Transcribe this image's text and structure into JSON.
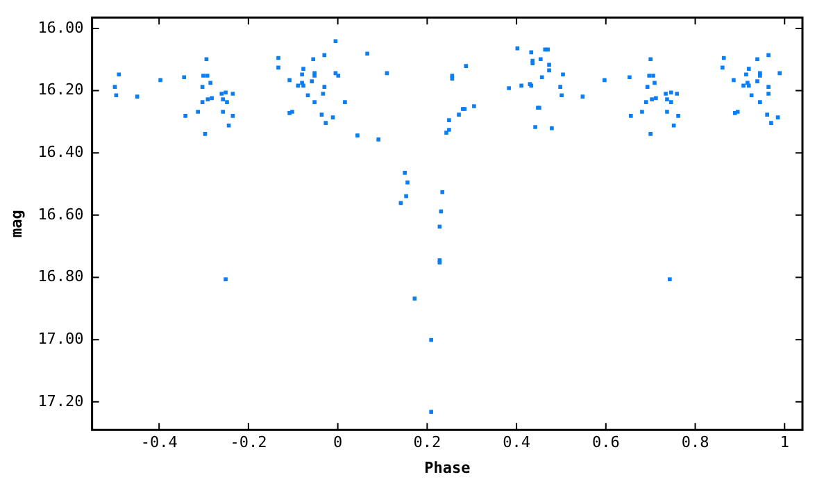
{
  "chart_data": {
    "type": "scatter",
    "xlabel": "Phase",
    "ylabel": "mag",
    "marker": "square",
    "grid": false,
    "xlim": [
      -0.55,
      1.04
    ],
    "xticks": [
      -0.4,
      -0.2,
      0,
      0.2,
      0.4,
      0.6,
      0.8,
      1
    ],
    "ylim": [
      17.29,
      15.965
    ],
    "yticks": [
      {
        "value": 16,
        "label": "16.00"
      },
      {
        "value": 16.2,
        "label": "16.20"
      },
      {
        "value": 16.4,
        "label": "16.40"
      },
      {
        "value": 16.6,
        "label": "16.60"
      },
      {
        "value": 16.8,
        "label": "16.80"
      },
      {
        "value": 17,
        "label": "17.00"
      },
      {
        "value": 17.2,
        "label": "17.20"
      }
    ],
    "series": [
      {
        "color": "#0a7ef5",
        "x": [
          -0.49,
          -0.499,
          -0.496,
          -0.449,
          -0.397,
          -0.344,
          -0.341,
          -0.294,
          -0.301,
          -0.292,
          -0.285,
          -0.303,
          -0.303,
          -0.291,
          -0.282,
          -0.313,
          -0.297,
          -0.26,
          -0.251,
          -0.235,
          -0.257,
          -0.248,
          -0.257,
          -0.235,
          -0.244,
          -0.133,
          -0.133,
          -0.108,
          -0.08,
          -0.077,
          -0.08,
          -0.089,
          -0.077,
          -0.055,
          -0.052,
          -0.052,
          -0.03,
          -0.058,
          -0.067,
          -0.052,
          -0.108,
          -0.102,
          -0.036,
          -0.027,
          -0.033,
          -0.03,
          -0.005,
          -0.005,
          0.001,
          0.016,
          -0.011,
          0.044,
          0.066,
          0.11,
          0.091,
          0.256,
          0.256,
          0.287,
          0.305,
          0.28,
          0.284,
          0.271,
          0.249,
          0.249,
          0.243,
          0.402,
          0.433,
          0.436,
          0.436,
          0.454,
          0.464,
          0.47,
          0.473,
          0.473,
          0.457,
          0.504,
          0.383,
          0.411,
          0.43,
          0.433,
          0.498,
          0.501,
          0.548,
          0.448,
          0.451,
          0.442,
          0.479,
          0.597,
          0.653,
          0.656,
          0.7,
          0.697,
          0.706,
          0.709,
          0.693,
          0.703,
          0.712,
          0.69,
          0.681,
          0.7,
          0.734,
          0.746,
          0.759,
          0.737,
          0.746,
          0.737,
          0.762,
          0.752,
          0.864,
          0.861,
          0.886,
          0.914,
          0.92,
          0.917,
          0.908,
          0.92,
          0.939,
          0.945,
          0.945,
          0.964,
          0.939,
          0.926,
          0.945,
          0.889,
          0.895,
          0.961,
          0.97,
          0.964,
          0.964,
          0.989,
          0.985,
          0.15,
          0.156,
          0.153,
          0.141,
          0.234,
          0.231,
          0.228,
          0.228,
          0.228,
          -0.251,
          0.743,
          0.172,
          0.209,
          0.209
        ],
        "values": [
          16.148,
          16.188,
          16.215,
          16.219,
          16.166,
          16.157,
          16.281,
          16.099,
          16.152,
          16.152,
          16.175,
          16.188,
          16.237,
          16.228,
          16.224,
          16.268,
          16.339,
          16.21,
          16.206,
          16.21,
          16.228,
          16.237,
          16.268,
          16.281,
          16.312,
          16.095,
          16.126,
          16.166,
          16.148,
          16.13,
          16.175,
          16.184,
          16.184,
          16.099,
          16.144,
          16.152,
          16.086,
          16.17,
          16.215,
          16.237,
          16.272,
          16.268,
          16.277,
          16.304,
          16.21,
          16.188,
          16.041,
          16.144,
          16.152,
          16.237,
          16.286,
          16.344,
          16.081,
          16.144,
          16.357,
          16.152,
          16.161,
          16.121,
          16.25,
          16.259,
          16.259,
          16.277,
          16.295,
          16.326,
          16.335,
          16.064,
          16.077,
          16.104,
          16.112,
          16.099,
          16.068,
          16.068,
          16.117,
          16.135,
          16.157,
          16.148,
          16.192,
          16.184,
          16.179,
          16.184,
          16.188,
          16.215,
          16.219,
          16.255,
          16.255,
          16.317,
          16.321,
          16.166,
          16.157,
          16.281,
          16.099,
          16.152,
          16.152,
          16.175,
          16.188,
          16.228,
          16.224,
          16.237,
          16.268,
          16.339,
          16.21,
          16.206,
          16.21,
          16.228,
          16.237,
          16.268,
          16.281,
          16.312,
          16.095,
          16.126,
          16.166,
          16.148,
          16.13,
          16.175,
          16.184,
          16.184,
          16.099,
          16.144,
          16.152,
          16.086,
          16.17,
          16.215,
          16.237,
          16.272,
          16.268,
          16.277,
          16.304,
          16.21,
          16.188,
          16.144,
          16.286,
          16.464,
          16.495,
          16.539,
          16.561,
          16.526,
          16.588,
          16.637,
          16.745,
          16.752,
          16.806,
          16.806,
          16.868,
          17.001,
          17.232
        ]
      }
    ]
  }
}
